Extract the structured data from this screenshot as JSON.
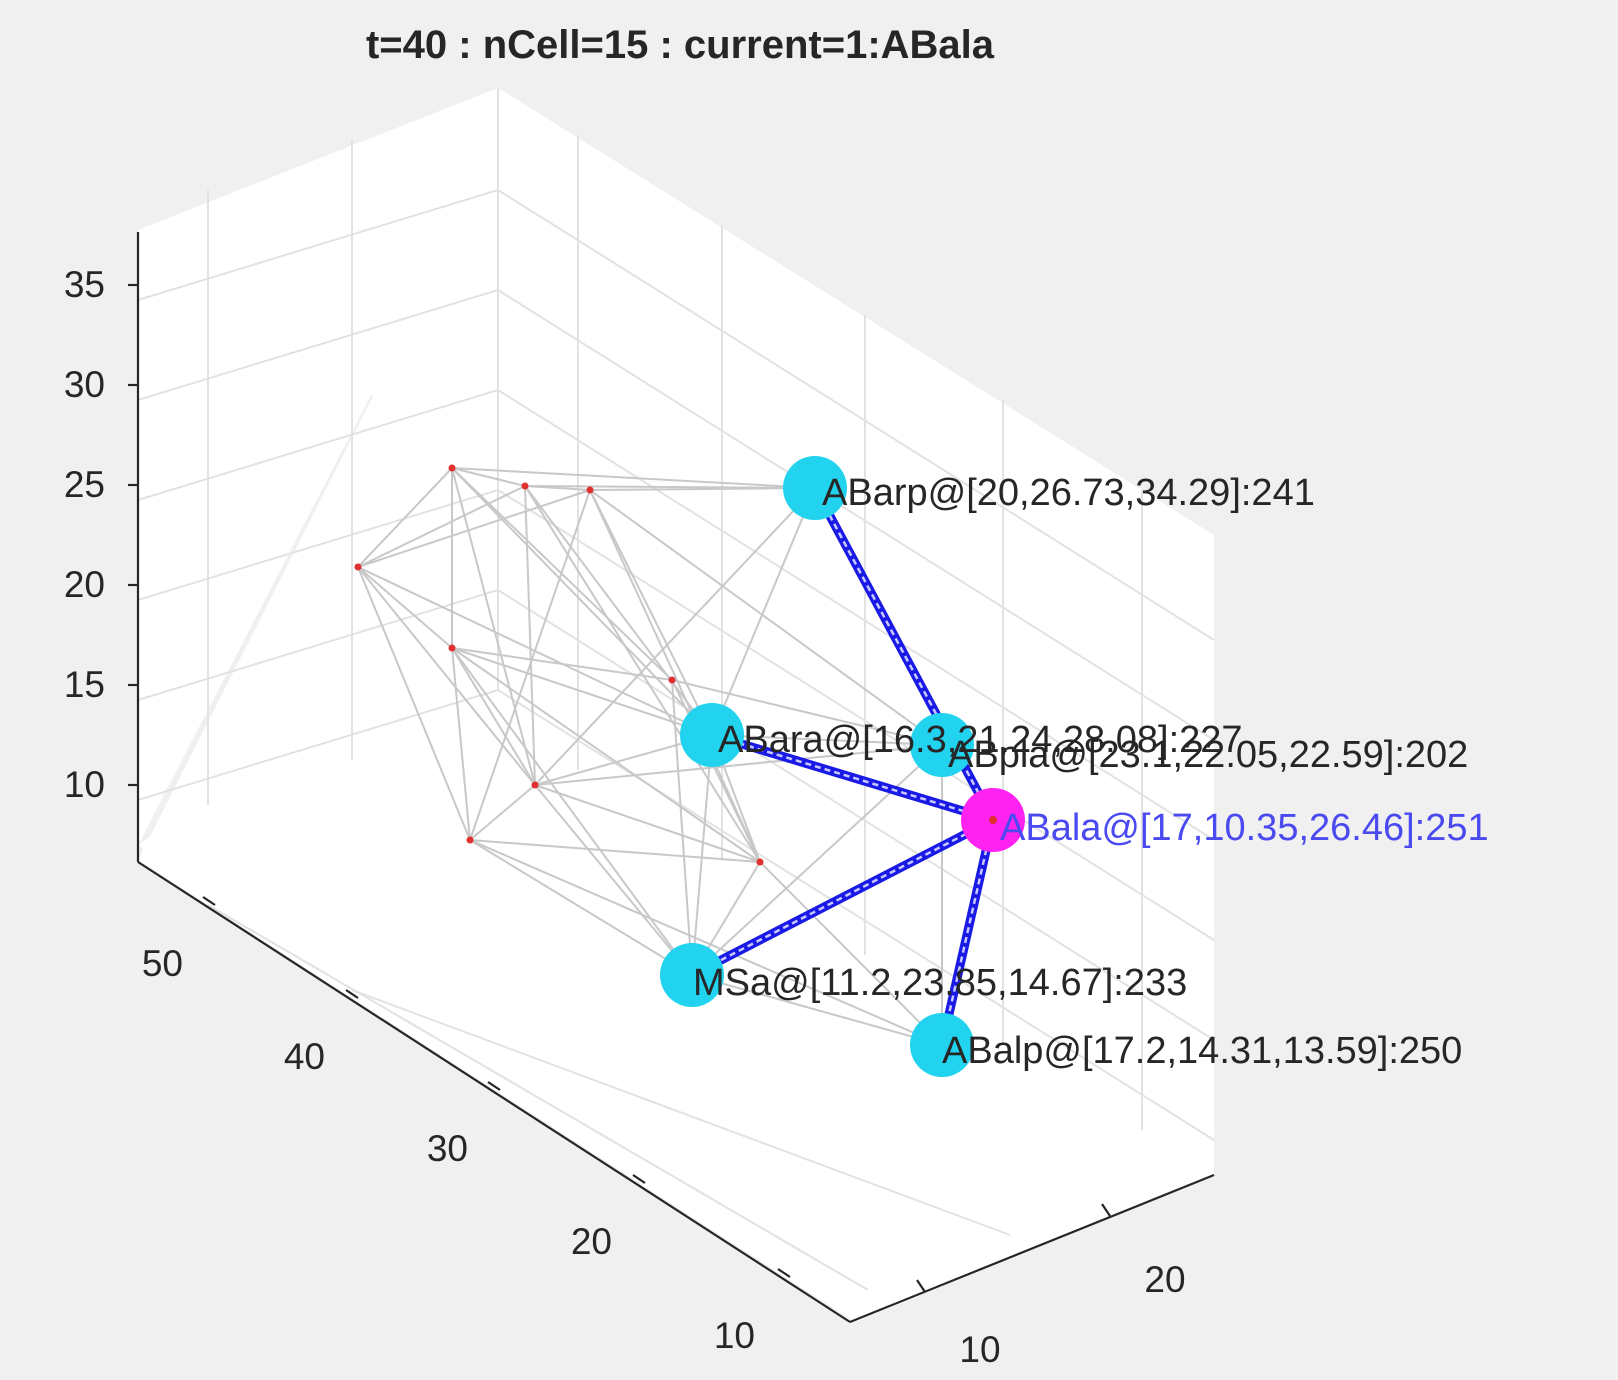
{
  "chart_data": {
    "type": "scatter3d",
    "title": "t=40 : nCell=15 : current=1:ABala",
    "zticks": [
      "10",
      "15",
      "20",
      "25",
      "30",
      "35"
    ],
    "xticks": [
      "10",
      "20",
      "30",
      "40",
      "50"
    ],
    "yticks": [
      "10",
      "20"
    ],
    "grid": true,
    "colors": {
      "node": "#22d3f0",
      "current_node": "#ff22f0",
      "edge_highlight": "#1a1ae6",
      "edge_background": "#c8c8c8",
      "cell_marker": "#e03030",
      "current_label": "#4a4af0"
    },
    "labeled_nodes": [
      {
        "label": "ABarp@[20,26.73,34.29]:241",
        "current": false
      },
      {
        "label": "ABara@[16.3,21.24,28.08]:227",
        "current": false
      },
      {
        "label": "ABpla@[23.1,22.05,22.59]:202",
        "current": false
      },
      {
        "label": "ABala@[17,10.35,26.46]:251",
        "current": true
      },
      {
        "label": "MSa@[11.2,23.85,14.67]:233",
        "current": false
      },
      {
        "label": "ABalp@[17.2,14.31,13.59]:250",
        "current": false
      }
    ],
    "unlabeled_cell_count": 9
  }
}
